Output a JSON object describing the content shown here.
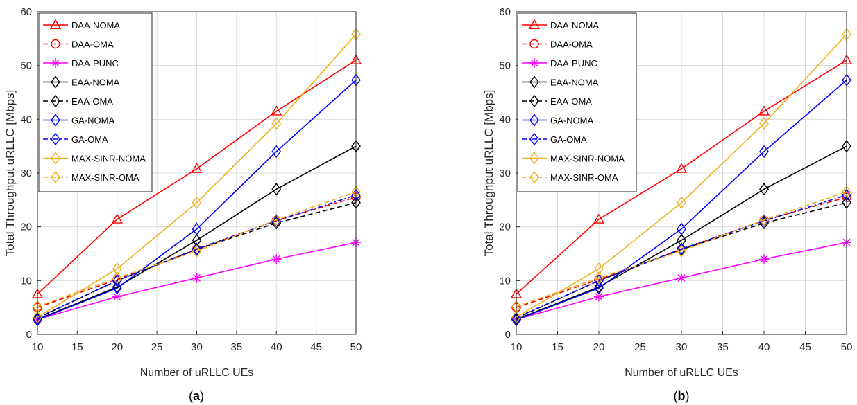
{
  "chart_data": [
    {
      "type": "line",
      "panel_label": "a",
      "xlabel": "Number of uRLLC UEs",
      "ylabel": "Total Throughput uRLLC [Mbps]",
      "xlim": [
        10,
        50
      ],
      "ylim": [
        0,
        60
      ],
      "xticks": [
        10,
        15,
        20,
        25,
        30,
        35,
        40,
        45,
        50
      ],
      "yticks": [
        0,
        10,
        20,
        30,
        40,
        50,
        60
      ],
      "grid": true,
      "legend_position": "top-left",
      "x": [
        10,
        20,
        30,
        40,
        50
      ],
      "series": [
        {
          "name": "DAA-NOMA",
          "values": [
            7.5,
            21.4,
            30.8,
            41.5,
            51.0
          ],
          "color": "#ff0000",
          "dash": "solid",
          "marker": "triangle"
        },
        {
          "name": "DAA-OMA",
          "values": [
            5.0,
            10.2,
            15.8,
            21.2,
            25.5
          ],
          "color": "#ff0000",
          "dash": "dashed",
          "marker": "circle"
        },
        {
          "name": "DAA-PUNC",
          "values": [
            2.8,
            7.0,
            10.5,
            14.0,
            17.1
          ],
          "color": "#ff00ff",
          "dash": "solid",
          "marker": "star"
        },
        {
          "name": "EAA-NOMA",
          "values": [
            2.8,
            8.8,
            17.5,
            27.0,
            35.0
          ],
          "color": "#000000",
          "dash": "solid",
          "marker": "diamond"
        },
        {
          "name": "EAA-OMA",
          "values": [
            3.0,
            10.0,
            15.8,
            20.7,
            24.5
          ],
          "color": "#000000",
          "dash": "dashed",
          "marker": "diamond"
        },
        {
          "name": "GA-NOMA",
          "values": [
            2.7,
            8.6,
            19.6,
            34.0,
            47.3
          ],
          "color": "#0000ff",
          "dash": "solid",
          "marker": "diamond"
        },
        {
          "name": "GA-OMA",
          "values": [
            3.1,
            10.0,
            15.9,
            21.1,
            25.9
          ],
          "color": "#0000ff",
          "dash": "dashdot",
          "marker": "diamond"
        },
        {
          "name": "MAX-SINR-NOMA",
          "values": [
            3.2,
            12.2,
            24.5,
            39.2,
            55.8
          ],
          "color": "#edb120",
          "dash": "solid",
          "marker": "diamond"
        },
        {
          "name": "MAX-SINR-OMA",
          "values": [
            5.2,
            10.5,
            15.5,
            21.3,
            26.5
          ],
          "color": "#edb120",
          "dash": "dashed",
          "marker": "diamond"
        }
      ]
    },
    {
      "type": "line",
      "panel_label": "b",
      "xlabel": "Number of uRLLC UEs",
      "ylabel": "Total Throughput uRLLC [Mbps]",
      "xlim": [
        10,
        50
      ],
      "ylim": [
        0,
        60
      ],
      "xticks": [
        10,
        15,
        20,
        25,
        30,
        35,
        40,
        45,
        50
      ],
      "yticks": [
        0,
        10,
        20,
        30,
        40,
        50,
        60
      ],
      "grid": true,
      "legend_position": "top-left",
      "x": [
        10,
        20,
        30,
        40,
        50
      ],
      "series": [
        {
          "name": "DAA-NOMA",
          "values": [
            7.5,
            21.4,
            30.8,
            41.5,
            51.0
          ],
          "color": "#ff0000",
          "dash": "solid",
          "marker": "triangle"
        },
        {
          "name": "DAA-OMA",
          "values": [
            5.0,
            10.2,
            15.8,
            21.2,
            25.5
          ],
          "color": "#ff0000",
          "dash": "dashed",
          "marker": "circle"
        },
        {
          "name": "DAA-PUNC",
          "values": [
            2.8,
            7.0,
            10.5,
            14.0,
            17.1
          ],
          "color": "#ff00ff",
          "dash": "solid",
          "marker": "star"
        },
        {
          "name": "EAA-NOMA",
          "values": [
            2.8,
            8.8,
            17.5,
            27.0,
            35.0
          ],
          "color": "#000000",
          "dash": "solid",
          "marker": "diamond"
        },
        {
          "name": "EAA-OMA",
          "values": [
            3.0,
            10.0,
            15.8,
            20.7,
            24.5
          ],
          "color": "#000000",
          "dash": "dashed",
          "marker": "diamond"
        },
        {
          "name": "GA-NOMA",
          "values": [
            2.7,
            8.6,
            19.6,
            34.0,
            47.3
          ],
          "color": "#0000ff",
          "dash": "solid",
          "marker": "diamond"
        },
        {
          "name": "GA-OMA",
          "values": [
            3.1,
            10.0,
            15.9,
            21.1,
            25.9
          ],
          "color": "#0000ff",
          "dash": "dashdot",
          "marker": "diamond"
        },
        {
          "name": "MAX-SINR-NOMA",
          "values": [
            3.2,
            12.2,
            24.5,
            39.2,
            55.8
          ],
          "color": "#edb120",
          "dash": "solid",
          "marker": "diamond"
        },
        {
          "name": "MAX-SINR-OMA",
          "values": [
            5.2,
            10.5,
            15.5,
            21.3,
            26.5
          ],
          "color": "#edb120",
          "dash": "dashed",
          "marker": "diamond"
        }
      ]
    }
  ]
}
